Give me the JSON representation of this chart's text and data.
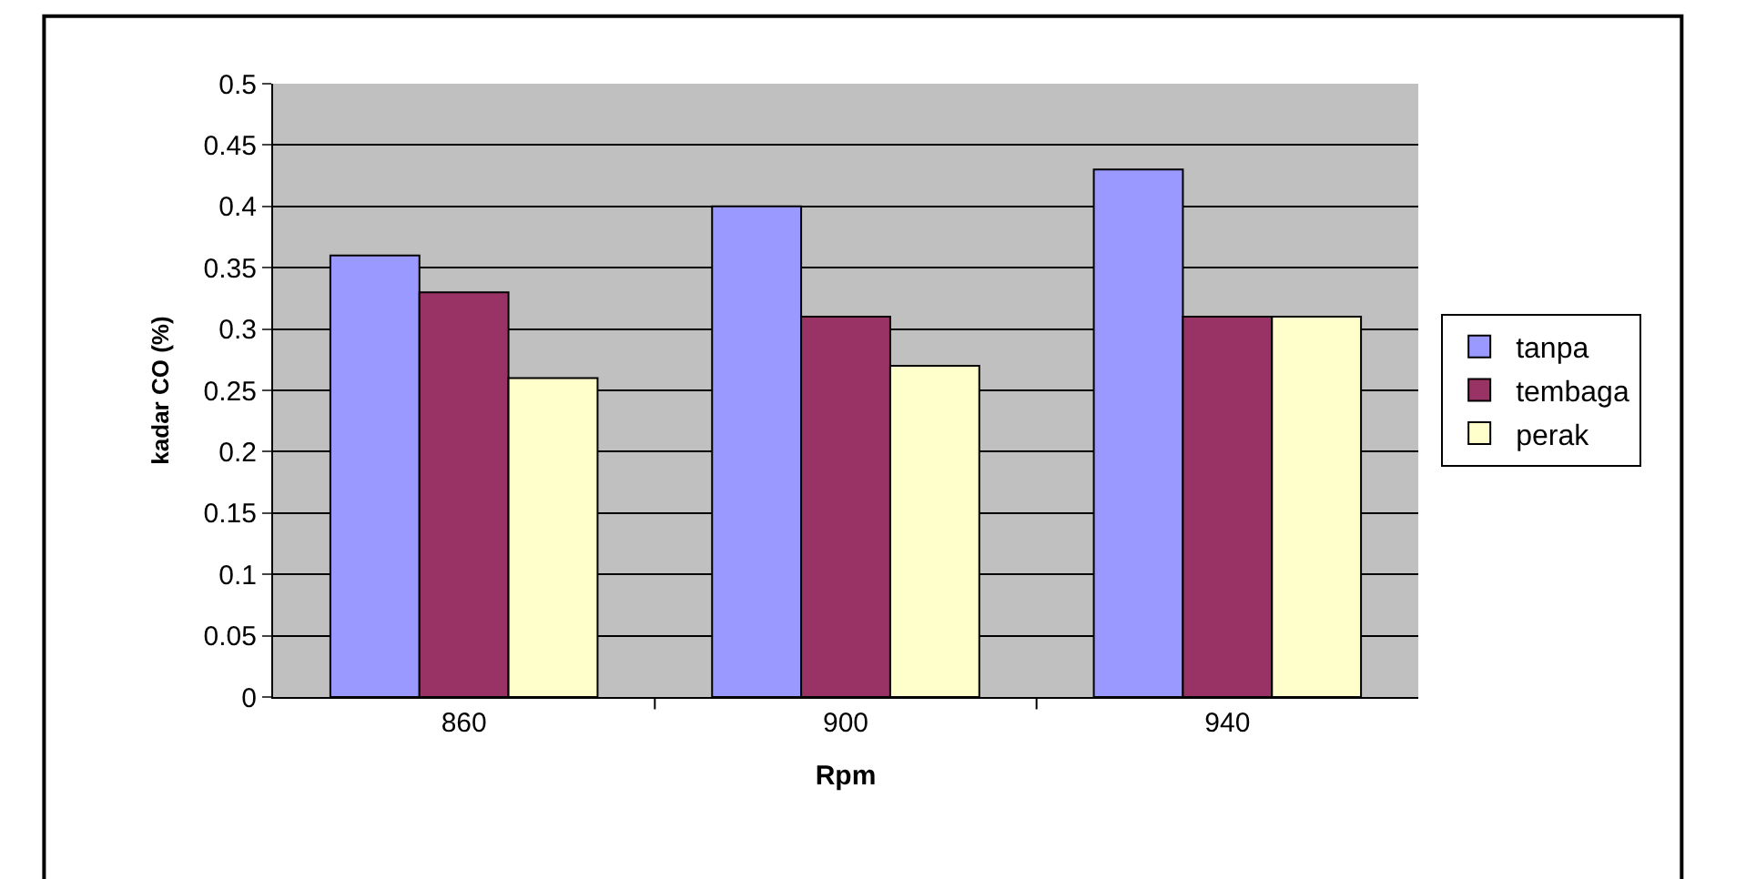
{
  "chart_data": {
    "type": "bar",
    "xlabel": "Rpm",
    "ylabel": "kadar CO (%)",
    "categories": [
      "860",
      "900",
      "940"
    ],
    "series": [
      {
        "name": "tanpa",
        "color": "#9999ff",
        "values": [
          0.36,
          0.4,
          0.43
        ]
      },
      {
        "name": "tembaga",
        "color": "#993366",
        "values": [
          0.33,
          0.31,
          0.31
        ]
      },
      {
        "name": "perak",
        "color": "#ffffcc",
        "values": [
          0.26,
          0.27,
          0.31
        ]
      }
    ],
    "ylim": [
      0,
      0.5
    ],
    "yticks": [
      {
        "value": 0,
        "label": "0"
      },
      0.05,
      0.1,
      0.15,
      0.2,
      0.25,
      0.3,
      0.35,
      0.4,
      0.45,
      0.5
    ],
    "grid": "y",
    "legend": "right"
  }
}
